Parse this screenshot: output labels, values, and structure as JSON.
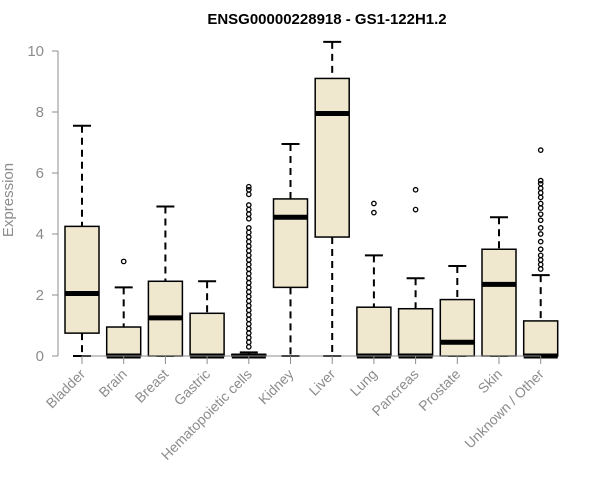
{
  "chart_data": {
    "type": "boxplot",
    "title": "ENSG00000228918 - GS1-122H1.2",
    "ylabel": "Expression",
    "xlabel": "",
    "ylim": [
      0,
      10.3
    ],
    "yticks": [
      0,
      2,
      4,
      6,
      8,
      10
    ],
    "colors": {
      "box_fill": "#efe8cf",
      "stroke": "#000000",
      "axis": "#8c8c8c"
    },
    "categories": [
      "Bladder",
      "Brain",
      "Breast",
      "Gastric",
      "Hematopoietic cells",
      "Kidney",
      "Liver",
      "Lung",
      "Pancreas",
      "Prostate",
      "Skin",
      "Unknown / Other"
    ],
    "boxes": [
      {
        "name": "Bladder",
        "min": 0,
        "q1": 0.75,
        "median": 2.05,
        "q3": 4.25,
        "max": 7.55,
        "outliers": []
      },
      {
        "name": "Brain",
        "min": 0,
        "q1": 0,
        "median": 0,
        "q3": 0.95,
        "max": 2.25,
        "outliers": [
          3.1
        ]
      },
      {
        "name": "Breast",
        "min": 0,
        "q1": 0,
        "median": 1.25,
        "q3": 2.45,
        "max": 4.9,
        "outliers": []
      },
      {
        "name": "Gastric",
        "min": 0,
        "q1": 0,
        "median": 0,
        "q3": 1.4,
        "max": 2.45,
        "outliers": []
      },
      {
        "name": "Hematopoietic cells",
        "min": 0,
        "q1": 0,
        "median": 0,
        "q3": 0.05,
        "max": 0.12,
        "outliers": [
          0.3,
          0.45,
          0.6,
          0.75,
          0.9,
          1.05,
          1.2,
          1.35,
          1.5,
          1.65,
          1.8,
          1.95,
          2.1,
          2.25,
          2.4,
          2.55,
          2.7,
          2.85,
          3.0,
          3.15,
          3.3,
          3.45,
          3.6,
          3.75,
          3.9,
          4.05,
          4.2,
          4.5,
          4.65,
          4.8,
          4.95,
          5.3,
          5.45,
          5.55
        ]
      },
      {
        "name": "Kidney",
        "min": 0,
        "q1": 2.25,
        "median": 4.55,
        "q3": 5.15,
        "max": 6.95,
        "outliers": []
      },
      {
        "name": "Liver",
        "min": 0,
        "q1": 3.9,
        "median": 7.95,
        "q3": 9.1,
        "max": 10.3,
        "outliers": []
      },
      {
        "name": "Lung",
        "min": 0,
        "q1": 0,
        "median": 0,
        "q3": 1.6,
        "max": 3.3,
        "outliers": [
          4.7,
          5.0
        ]
      },
      {
        "name": "Pancreas",
        "min": 0,
        "q1": 0,
        "median": 0,
        "q3": 1.55,
        "max": 2.55,
        "outliers": [
          4.8,
          5.45
        ]
      },
      {
        "name": "Prostate",
        "min": 0,
        "q1": 0,
        "median": 0.45,
        "q3": 1.85,
        "max": 2.95,
        "outliers": []
      },
      {
        "name": "Skin",
        "min": 0,
        "q1": 0,
        "median": 2.35,
        "q3": 3.5,
        "max": 4.55,
        "outliers": []
      },
      {
        "name": "Unknown / Other",
        "min": 0,
        "q1": 0,
        "median": 0,
        "q3": 1.15,
        "max": 2.65,
        "outliers": [
          2.85,
          3.0,
          3.15,
          3.3,
          3.5,
          3.75,
          4.0,
          4.2,
          4.45,
          4.65,
          4.85,
          5.0,
          5.2,
          5.35,
          5.5,
          5.65,
          5.75,
          6.75
        ]
      }
    ]
  }
}
